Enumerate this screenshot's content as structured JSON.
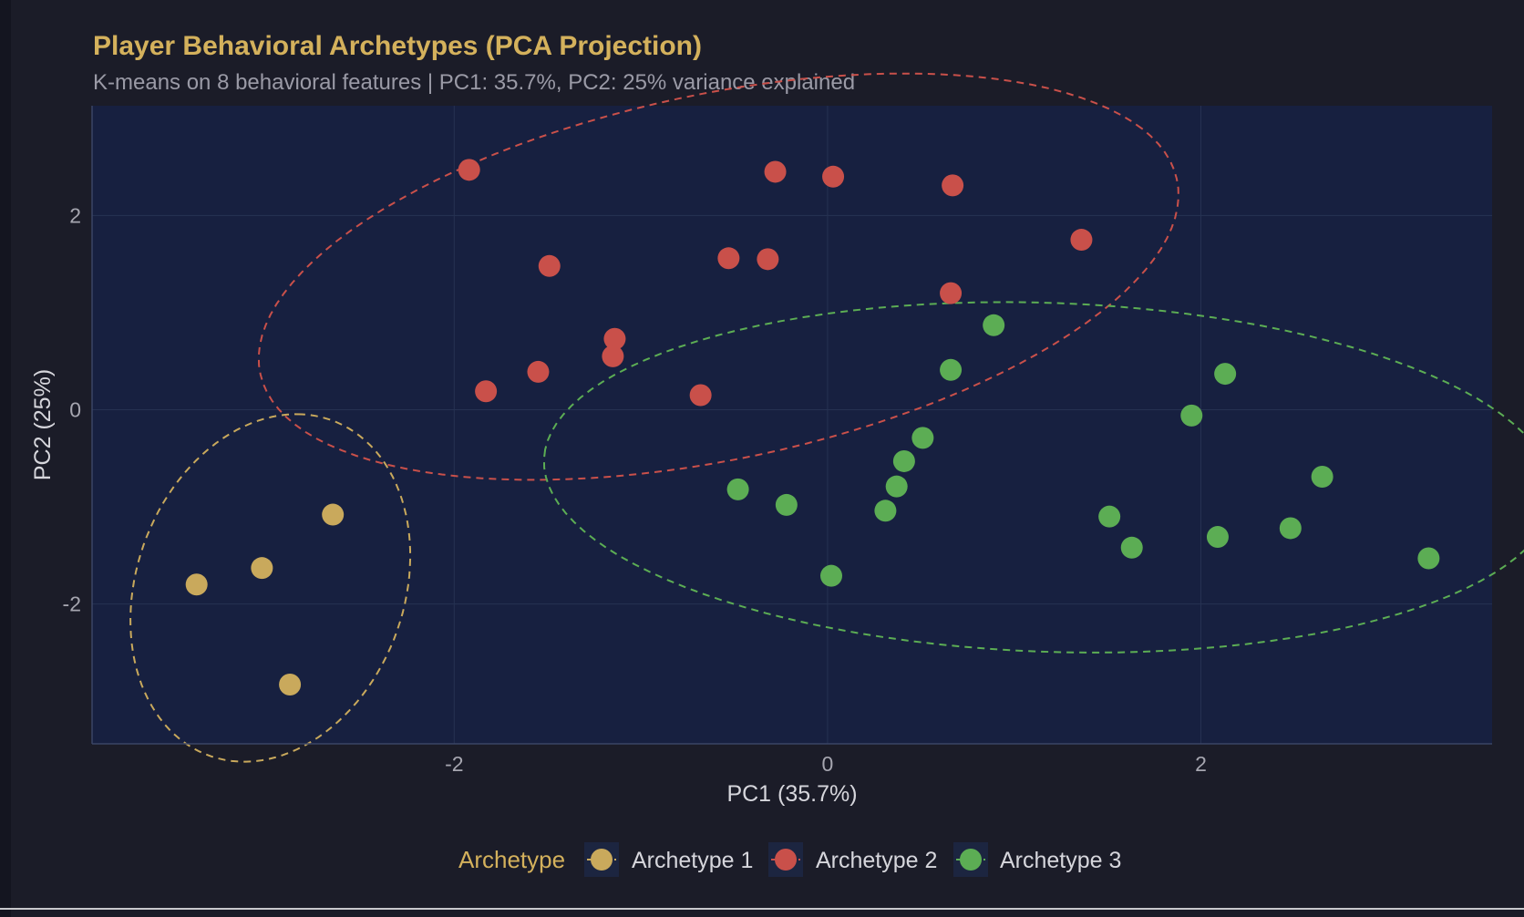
{
  "title": "Player Behavioral Archetypes (PCA Projection)",
  "subtitle": "K-means on 8 behavioral features | PC1: 35.7%, PC2: 25% variance explained",
  "legend": {
    "title": "Archetype",
    "items": [
      {
        "label": "Archetype 1",
        "color": "#c9a95c"
      },
      {
        "label": "Archetype 2",
        "color": "#c9504a"
      },
      {
        "label": "Archetype 3",
        "color": "#5cad54"
      }
    ]
  },
  "chart_data": {
    "type": "scatter",
    "title": "Player Behavioral Archetypes (PCA Projection)",
    "subtitle": "K-means on 8 behavioral features | PC1: 35.7%, PC2: 25% variance explained",
    "xlabel": "PC1 (35.7%)",
    "ylabel": "PC2 (25%)",
    "xlim": [
      -3.94,
      3.56
    ],
    "ylim": [
      -3.44,
      3.13
    ],
    "xticks": [
      -2,
      0,
      2
    ],
    "yticks": [
      -2,
      0,
      2
    ],
    "grid": true,
    "legend_position": "bottom",
    "series": [
      {
        "name": "Archetype 1",
        "color": "#c9a95c",
        "points": [
          [
            -3.38,
            -1.8
          ],
          [
            -3.03,
            -1.63
          ],
          [
            -2.65,
            -1.08
          ],
          [
            -2.88,
            -2.83
          ]
        ],
        "ellipse": {
          "cx": -2.9,
          "cy": -2.07,
          "rx": 1.05,
          "ry": 0.68,
          "angle_deg": 0
        }
      },
      {
        "name": "Archetype 2",
        "color": "#c9504a",
        "points": [
          [
            -1.92,
            2.47
          ],
          [
            -1.49,
            1.48
          ],
          [
            -1.14,
            0.73
          ],
          [
            -1.15,
            0.55
          ],
          [
            -1.55,
            0.39
          ],
          [
            -1.83,
            0.19
          ],
          [
            -0.68,
            0.15
          ],
          [
            -0.53,
            1.56
          ],
          [
            -0.32,
            1.55
          ],
          [
            -0.28,
            2.45
          ],
          [
            0.03,
            2.4
          ],
          [
            0.67,
            2.31
          ],
          [
            0.66,
            1.2
          ],
          [
            1.36,
            1.75
          ]
        ],
        "ellipse": {
          "cx": -0.45,
          "cy": 1.3,
          "rx": 1.0,
          "ry": 1.0,
          "angle_deg": 0
        }
      },
      {
        "name": "Archetype 3",
        "color": "#5cad54",
        "points": [
          [
            0.66,
            0.41
          ],
          [
            0.89,
            0.87
          ],
          [
            -0.48,
            -0.82
          ],
          [
            -0.22,
            -0.98
          ],
          [
            0.02,
            -1.71
          ],
          [
            0.31,
            -1.04
          ],
          [
            0.37,
            -0.79
          ],
          [
            0.41,
            -0.53
          ],
          [
            0.51,
            -0.29
          ],
          [
            1.51,
            -1.1
          ],
          [
            1.63,
            -1.42
          ],
          [
            1.95,
            -0.06
          ],
          [
            2.13,
            0.37
          ],
          [
            2.09,
            -1.31
          ],
          [
            2.48,
            -1.22
          ],
          [
            2.65,
            -0.69
          ],
          [
            3.22,
            -1.53
          ]
        ],
        "ellipse": {
          "cx": 1.16,
          "cy": -0.62,
          "rx": 1.0,
          "ry": 1.0,
          "angle_deg": 0
        }
      }
    ]
  }
}
